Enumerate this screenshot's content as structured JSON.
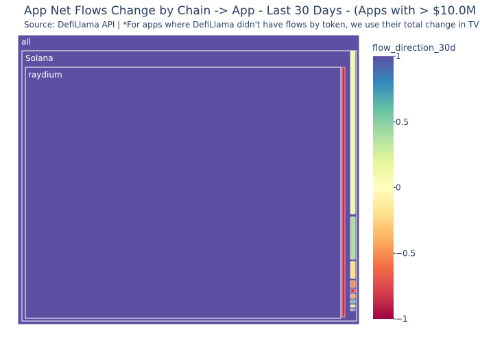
{
  "chart_data": {
    "type": "treemap",
    "title": "App Net Flows Change by Chain -> App - Last 30 Days - (Apps with > $10.0M",
    "subtitle": "Source: DefiLlama API | *For apps where DefiLlama didn't have flows by token, we use their total change in TV",
    "root": {
      "label": "all",
      "children": [
        {
          "label": "Solana",
          "children": [
            {
              "label": "raydium",
              "flow_direction_30d": 1
            }
          ]
        }
      ]
    },
    "other_tiles": [
      {
        "flow_direction_30d": 0.1
      },
      {
        "flow_direction_30d": 0.4
      },
      {
        "flow_direction_30d": -0.2
      },
      {
        "flow_direction_30d": -0.5
      },
      {
        "flow_direction_30d": -0.8
      },
      {
        "flow_direction_30d": -0.4
      },
      {
        "flow_direction_30d": 0.6
      },
      {
        "flow_direction_30d": 0.2
      },
      {
        "flow_direction_30d": 0.5
      },
      {
        "flow_direction_30d": 0.8
      }
    ],
    "colorbar": {
      "title": "flow_direction_30d",
      "range": [
        -1,
        1
      ],
      "ticks": [
        1,
        0.5,
        0,
        -0.5,
        -1
      ],
      "tick_labels": [
        "1",
        "0.5",
        "0",
        "−0.5",
        "−1"
      ],
      "colorscale": [
        "#9e0142",
        "#d53e4f",
        "#f46d43",
        "#fdae61",
        "#fee08b",
        "#ffffbf",
        "#e6f598",
        "#abdda4",
        "#66c2a5",
        "#3288bd",
        "#5e4fa2"
      ]
    }
  }
}
